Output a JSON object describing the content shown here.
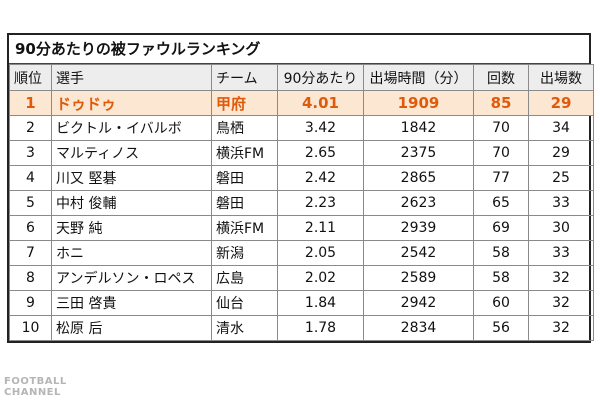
{
  "table_title": "90分あたりの被ファウルランキング",
  "headers": {
    "rank": "順位",
    "player": "選手",
    "team": "チーム",
    "per90": "90分あたり",
    "minutes": "出場時間（分）",
    "count": "回数",
    "apps": "出場数"
  },
  "rows": [
    {
      "rank": "1",
      "player": "ドゥドゥ",
      "team": "甲府",
      "per90": "4.01",
      "minutes": "1909",
      "count": "85",
      "apps": "29"
    },
    {
      "rank": "2",
      "player": "ビクトル・イバルボ",
      "team": "鳥栖",
      "per90": "3.42",
      "minutes": "1842",
      "count": "70",
      "apps": "34"
    },
    {
      "rank": "3",
      "player": "マルティノス",
      "team": "横浜FM",
      "per90": "2.65",
      "minutes": "2375",
      "count": "70",
      "apps": "29"
    },
    {
      "rank": "4",
      "player": "川又 堅碁",
      "team": "磐田",
      "per90": "2.42",
      "minutes": "2865",
      "count": "77",
      "apps": "25"
    },
    {
      "rank": "5",
      "player": "中村 俊輔",
      "team": "磐田",
      "per90": "2.23",
      "minutes": "2623",
      "count": "65",
      "apps": "33"
    },
    {
      "rank": "6",
      "player": "天野 純",
      "team": "横浜FM",
      "per90": "2.11",
      "minutes": "2939",
      "count": "69",
      "apps": "30"
    },
    {
      "rank": "7",
      "player": "ホニ",
      "team": "新潟",
      "per90": "2.05",
      "minutes": "2542",
      "count": "58",
      "apps": "33"
    },
    {
      "rank": "8",
      "player": "アンデルソン・ロペス",
      "team": "広島",
      "per90": "2.02",
      "minutes": "2589",
      "count": "58",
      "apps": "32"
    },
    {
      "rank": "9",
      "player": "三田 啓貴",
      "team": "仙台",
      "per90": "1.84",
      "minutes": "2942",
      "count": "60",
      "apps": "32"
    },
    {
      "rank": "10",
      "player": "松原 后",
      "team": "清水",
      "per90": "1.78",
      "minutes": "2834",
      "count": "56",
      "apps": "32"
    }
  ],
  "highlight_color": "#e05a0c",
  "highlight_bg": "#fce8d2",
  "watermark": {
    "line1": "FOOTBALL",
    "line2": "CHANNEL"
  }
}
